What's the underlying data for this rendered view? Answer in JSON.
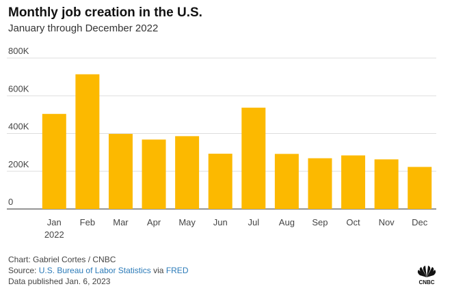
{
  "header": {
    "title": "Monthly job creation in the U.S.",
    "subtitle": "January through December 2022"
  },
  "chart_data": {
    "type": "bar",
    "title": "Monthly job creation in the U.S.",
    "subtitle": "January through December 2022",
    "categories": [
      "Jan",
      "Feb",
      "Mar",
      "Apr",
      "May",
      "Jun",
      "Jul",
      "Aug",
      "Sep",
      "Oct",
      "Nov",
      "Dec"
    ],
    "category_sublabels": [
      "2022",
      "",
      "",
      "",
      "",
      "",
      "",
      "",
      "",
      "",
      "",
      ""
    ],
    "values": [
      504000,
      714000,
      398000,
      368000,
      386000,
      293000,
      537000,
      292000,
      269000,
      284000,
      263000,
      223000
    ],
    "ylim": [
      0,
      800000
    ],
    "yticks": [
      0,
      200000,
      400000,
      600000,
      800000
    ],
    "ytick_labels": [
      "0",
      "200K",
      "400K",
      "600K",
      "800K"
    ],
    "xlabel": "",
    "ylabel": "",
    "grid": true,
    "bar_color": "#fcb900",
    "grid_color": "#dddddd"
  },
  "footer": {
    "credit": "Chart: Gabriel Cortes / CNBC",
    "source_prefix": "Source: ",
    "source_link1": "U.S. Bureau of Labor Statistics",
    "source_via": " via ",
    "source_link2": "FRED",
    "published": "Data published Jan. 6, 2023"
  },
  "logo": {
    "icon": "cnbc-peacock-logo",
    "text": "CNBC"
  }
}
